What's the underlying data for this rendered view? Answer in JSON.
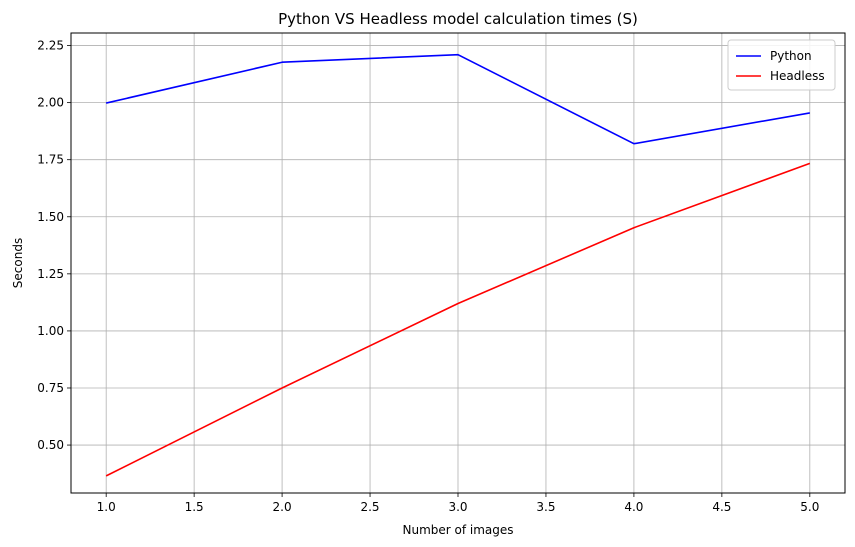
{
  "chart_data": {
    "type": "line",
    "title": "Python VS Headless model calculation times (S)",
    "xlabel": "Number of images",
    "ylabel": "Seconds",
    "x": [
      1.0,
      2.0,
      3.0,
      4.0,
      5.0
    ],
    "series": [
      {
        "name": "Python",
        "color": "#0000ff",
        "values": [
          1.998,
          2.177,
          2.21,
          1.82,
          1.955
        ]
      },
      {
        "name": "Headless",
        "color": "#ff0000",
        "values": [
          0.365,
          0.75,
          1.12,
          1.452,
          1.734
        ]
      }
    ],
    "xlim": [
      0.8,
      5.2
    ],
    "ylim": [
      0.29,
      2.305
    ],
    "xticks": [
      1.0,
      1.5,
      2.0,
      2.5,
      3.0,
      3.5,
      4.0,
      4.5,
      5.0
    ],
    "xtick_labels": [
      "1.0",
      "1.5",
      "2.0",
      "2.5",
      "3.0",
      "3.5",
      "4.0",
      "4.5",
      "5.0"
    ],
    "yticks": [
      0.5,
      0.75,
      1.0,
      1.25,
      1.5,
      1.75,
      2.0,
      2.25
    ],
    "ytick_labels": [
      "0.50",
      "0.75",
      "1.00",
      "1.25",
      "1.50",
      "1.75",
      "2.00",
      "2.25"
    ],
    "grid": true,
    "legend_position": "top-right"
  }
}
